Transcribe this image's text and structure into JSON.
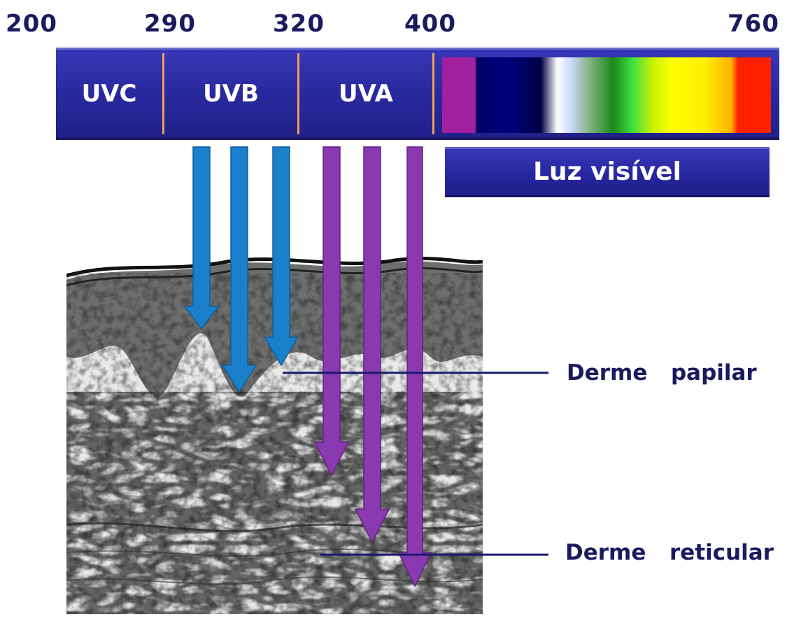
{
  "wavelength_ticks": [
    "200",
    "290",
    "320",
    "400",
    "760"
  ],
  "bands": {
    "uvc": "UVC",
    "uvb": "UVB",
    "uva": "UVA"
  },
  "visible_light_label": "Luz visível",
  "layers": {
    "papillary_dermis": "Derme  papilar",
    "reticular_dermis": "Derme  reticular"
  },
  "colors": {
    "uvb_arrow": "#1a80cc",
    "uva_arrow": "#8a3ab0",
    "bar": "#2a2aa0",
    "divider": "#f0a050",
    "label_text": "#1a1a5e"
  }
}
